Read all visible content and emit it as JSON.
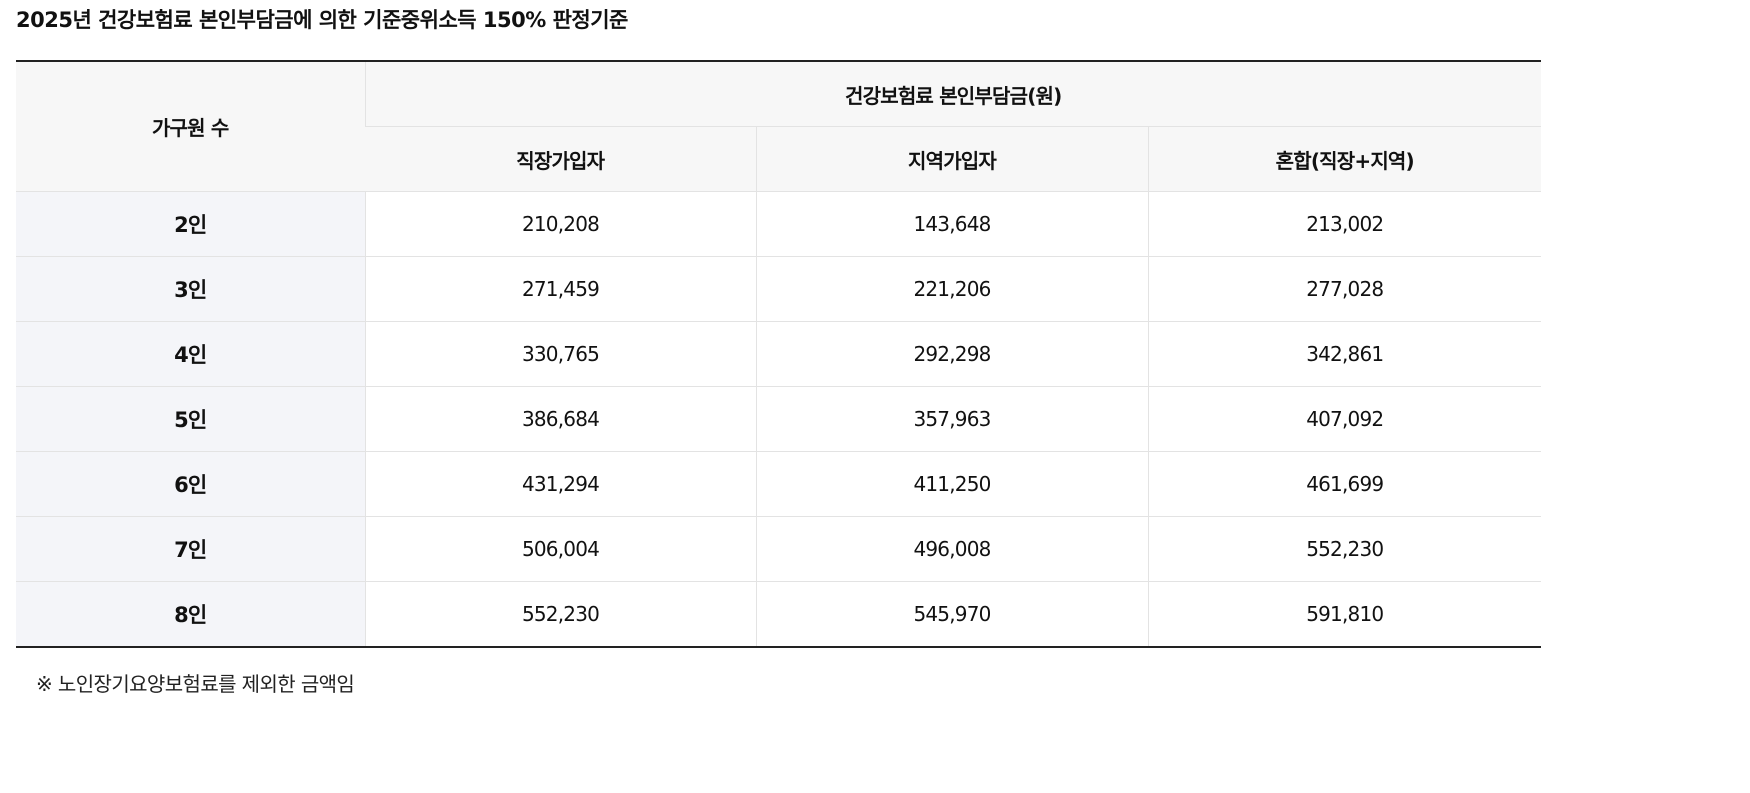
{
  "title": "2025년 건강보험료 본인부담금에 의한 기준중위소득 150% 판정기준",
  "table": {
    "header_household": "가구원 수",
    "header_group": "건강보험료 본인부담금(원)",
    "columns": [
      "직장가입자",
      "지역가입자",
      "혼합(직장+지역)"
    ],
    "rows": [
      {
        "label": "2인",
        "values": [
          "210,208",
          "143,648",
          "213,002"
        ]
      },
      {
        "label": "3인",
        "values": [
          "271,459",
          "221,206",
          "277,028"
        ]
      },
      {
        "label": "4인",
        "values": [
          "330,765",
          "292,298",
          "342,861"
        ]
      },
      {
        "label": "5인",
        "values": [
          "386,684",
          "357,963",
          "407,092"
        ]
      },
      {
        "label": "6인",
        "values": [
          "431,294",
          "411,250",
          "461,699"
        ]
      },
      {
        "label": "7인",
        "values": [
          "506,004",
          "496,008",
          "552,230"
        ]
      },
      {
        "label": "8인",
        "values": [
          "552,230",
          "545,970",
          "591,810"
        ]
      }
    ]
  },
  "footnote": "※ 노인장기요양보험료를 제외한 금액임"
}
